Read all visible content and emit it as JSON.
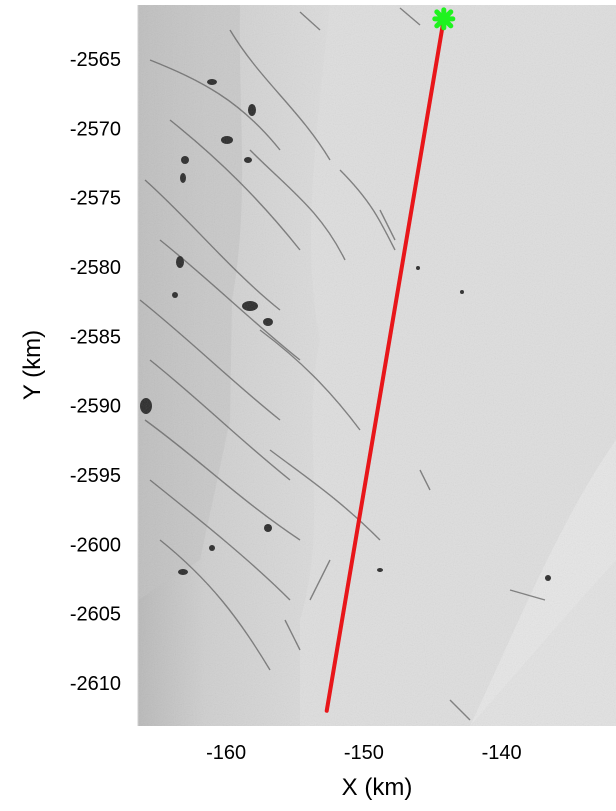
{
  "chart_data": {
    "type": "map",
    "xlabel": "X (km)",
    "ylabel": "Y (km)",
    "xlim": [
      -166.4,
      -131.7
    ],
    "ylim": [
      -2613.1,
      -2561.1
    ],
    "x_ticks": [
      -160,
      -150,
      -140
    ],
    "y_ticks": [
      -2565,
      -2570,
      -2575,
      -2580,
      -2585,
      -2590,
      -2595,
      -2600,
      -2605,
      -2610
    ],
    "x_tick_labels": [
      "-160",
      "-150",
      "-140"
    ],
    "y_tick_labels": [
      "-2565",
      "-2570",
      "-2575",
      "-2580",
      "-2585",
      "-2590",
      "-2595",
      "-2600",
      "-2605",
      "-2610"
    ],
    "transect": {
      "start": {
        "x": -144.2,
        "y": -2562.1
      },
      "end": {
        "x": -152.7,
        "y": -2612.0
      },
      "color": "#e8161a"
    },
    "marker": {
      "x": -144.2,
      "y": -2562.1,
      "shape": "cross",
      "color": "#1ff21f"
    },
    "background": "grayscale satellite image of ice surface"
  }
}
